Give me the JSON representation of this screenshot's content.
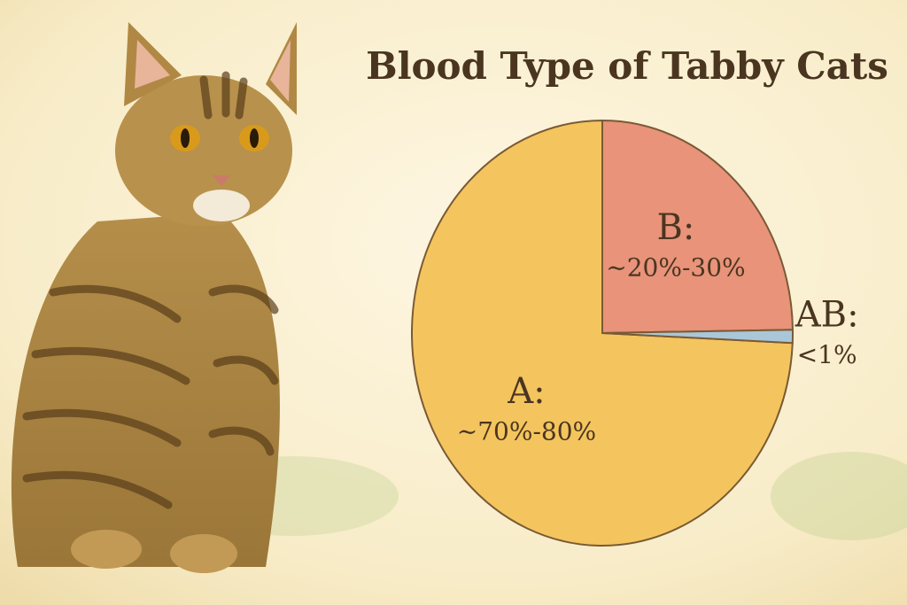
{
  "chart_data": {
    "type": "pie",
    "title": "Blood Type of Tabby Cats",
    "categories": [
      "A:",
      "B:",
      "AB:"
    ],
    "values": [
      75,
      25,
      1
    ],
    "value_labels": [
      "~70%-80%",
      "~20%-30%",
      "<1%"
    ],
    "colors": [
      "#f4c55e",
      "#e8937a",
      "#a9c7d8"
    ]
  }
}
